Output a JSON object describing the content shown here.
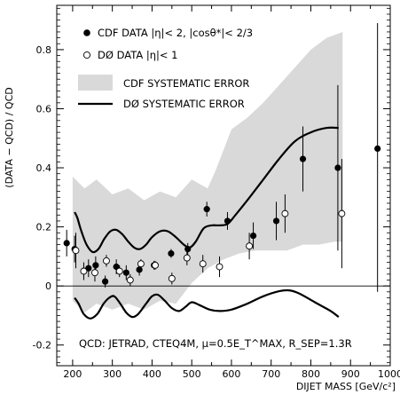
{
  "chart_data": {
    "type": "scatter",
    "xlabel": "DIJET MASS [GeV/c²]",
    "ylabel": "(DATA − QCD) / QCD",
    "xlim": [
      160,
      1000
    ],
    "ylim": [
      -0.27,
      0.95
    ],
    "x_ticks": [
      200,
      300,
      400,
      500,
      600,
      700,
      800,
      900,
      1000
    ],
    "y_ticks": [
      -0.2,
      0,
      0.2,
      0.4,
      0.6,
      0.8
    ],
    "y_tick_labels": [
      "-0.2",
      "0",
      "0.2",
      "0.4",
      "0.6",
      "0.8"
    ],
    "annotation": "QCD: JETRAD, CTEQ4M, μ=0.5E_T^MAX, R_SEP=1.3R",
    "legend": {
      "cdf_data": "CDF DATA |η|< 2, |cosθ*|< 2/3",
      "d0_data": "DØ DATA |η|< 1",
      "cdf_syst": "CDF SYSTEMATIC ERROR",
      "d0_syst": "DØ SYSTEMATIC ERROR"
    },
    "series": [
      {
        "name": "CDF DATA |η|< 2, |cosθ*|< 2/3",
        "marker": "filled-circle",
        "points": [
          {
            "x": 185,
            "y": 0.145,
            "lo": 0.1,
            "hi": 0.19
          },
          {
            "x": 205,
            "y": 0.125,
            "lo": 0.08,
            "hi": 0.17
          },
          {
            "x": 240,
            "y": 0.06,
            "lo": 0.03,
            "hi": 0.09
          },
          {
            "x": 258,
            "y": 0.07,
            "lo": 0.04,
            "hi": 0.1
          },
          {
            "x": 282,
            "y": 0.015,
            "lo": -0.005,
            "hi": 0.035
          },
          {
            "x": 310,
            "y": 0.065,
            "lo": 0.04,
            "hi": 0.09
          },
          {
            "x": 335,
            "y": 0.045,
            "lo": 0.02,
            "hi": 0.07
          },
          {
            "x": 368,
            "y": 0.055,
            "lo": 0.035,
            "hi": 0.075
          },
          {
            "x": 405,
            "y": 0.07,
            "lo": 0.055,
            "hi": 0.085
          },
          {
            "x": 448,
            "y": 0.11,
            "lo": 0.095,
            "hi": 0.125
          },
          {
            "x": 490,
            "y": 0.125,
            "lo": 0.105,
            "hi": 0.145
          },
          {
            "x": 538,
            "y": 0.26,
            "lo": 0.235,
            "hi": 0.285
          },
          {
            "x": 590,
            "y": 0.22,
            "lo": 0.19,
            "hi": 0.25
          },
          {
            "x": 655,
            "y": 0.17,
            "lo": 0.125,
            "hi": 0.215
          },
          {
            "x": 713,
            "y": 0.22,
            "lo": 0.155,
            "hi": 0.285
          },
          {
            "x": 780,
            "y": 0.43,
            "lo": 0.32,
            "hi": 0.54
          },
          {
            "x": 868,
            "y": 0.4,
            "lo": 0.12,
            "hi": 0.68
          },
          {
            "x": 968,
            "y": 0.465,
            "lo": -0.02,
            "hi": 0.89
          }
        ]
      },
      {
        "name": "DØ DATA |η|< 1",
        "marker": "open-circle",
        "points": [
          {
            "x": 208,
            "y": 0.12,
            "lo": 0.06,
            "hi": 0.18
          },
          {
            "x": 228,
            "y": 0.05,
            "lo": 0.02,
            "hi": 0.08
          },
          {
            "x": 256,
            "y": 0.045,
            "lo": 0.015,
            "hi": 0.075
          },
          {
            "x": 285,
            "y": 0.085,
            "lo": 0.065,
            "hi": 0.105
          },
          {
            "x": 318,
            "y": 0.05,
            "lo": 0.03,
            "hi": 0.07
          },
          {
            "x": 345,
            "y": 0.02,
            "lo": 0.0,
            "hi": 0.04
          },
          {
            "x": 372,
            "y": 0.075,
            "lo": 0.06,
            "hi": 0.09
          },
          {
            "x": 408,
            "y": 0.07,
            "lo": 0.055,
            "hi": 0.085
          },
          {
            "x": 450,
            "y": 0.025,
            "lo": 0.005,
            "hi": 0.045
          },
          {
            "x": 488,
            "y": 0.095,
            "lo": 0.07,
            "hi": 0.12
          },
          {
            "x": 528,
            "y": 0.075,
            "lo": 0.045,
            "hi": 0.105
          },
          {
            "x": 570,
            "y": 0.065,
            "lo": 0.03,
            "hi": 0.1
          },
          {
            "x": 645,
            "y": 0.135,
            "lo": 0.09,
            "hi": 0.18
          },
          {
            "x": 735,
            "y": 0.245,
            "lo": 0.18,
            "hi": 0.31
          },
          {
            "x": 878,
            "y": 0.245,
            "lo": 0.06,
            "hi": 0.43
          }
        ]
      }
    ],
    "cdf_systematic_band": {
      "upper": [
        [
          200,
          0.37
        ],
        [
          230,
          0.33
        ],
        [
          260,
          0.36
        ],
        [
          300,
          0.31
        ],
        [
          340,
          0.33
        ],
        [
          380,
          0.29
        ],
        [
          420,
          0.32
        ],
        [
          460,
          0.3
        ],
        [
          500,
          0.36
        ],
        [
          540,
          0.33
        ],
        [
          560,
          0.39
        ],
        [
          600,
          0.53
        ],
        [
          640,
          0.57
        ],
        [
          680,
          0.62
        ],
        [
          720,
          0.68
        ],
        [
          760,
          0.74
        ],
        [
          800,
          0.8
        ],
        [
          840,
          0.84
        ],
        [
          880,
          0.86
        ]
      ],
      "lower": [
        [
          200,
          -0.05
        ],
        [
          230,
          -0.09
        ],
        [
          260,
          -0.06
        ],
        [
          300,
          -0.08
        ],
        [
          340,
          -0.06
        ],
        [
          380,
          -0.08
        ],
        [
          420,
          -0.05
        ],
        [
          460,
          -0.06
        ],
        [
          500,
          0.01
        ],
        [
          540,
          0.06
        ],
        [
          580,
          0.09
        ],
        [
          620,
          0.11
        ],
        [
          660,
          0.12
        ],
        [
          700,
          0.12
        ],
        [
          740,
          0.12
        ],
        [
          780,
          0.14
        ],
        [
          820,
          0.14
        ],
        [
          860,
          0.15
        ],
        [
          880,
          0.15
        ]
      ]
    },
    "d0_systematic_upper": [
      [
        205,
        0.25
      ],
      [
        212,
        0.23
      ],
      [
        222,
        0.185
      ],
      [
        235,
        0.14
      ],
      [
        250,
        0.115
      ],
      [
        265,
        0.125
      ],
      [
        280,
        0.16
      ],
      [
        295,
        0.185
      ],
      [
        310,
        0.19
      ],
      [
        325,
        0.175
      ],
      [
        340,
        0.15
      ],
      [
        355,
        0.13
      ],
      [
        370,
        0.125
      ],
      [
        385,
        0.14
      ],
      [
        400,
        0.165
      ],
      [
        420,
        0.185
      ],
      [
        440,
        0.185
      ],
      [
        460,
        0.165
      ],
      [
        480,
        0.14
      ],
      [
        495,
        0.13
      ],
      [
        510,
        0.15
      ],
      [
        530,
        0.195
      ],
      [
        550,
        0.205
      ],
      [
        570,
        0.205
      ],
      [
        590,
        0.21
      ],
      [
        610,
        0.24
      ],
      [
        640,
        0.29
      ],
      [
        680,
        0.36
      ],
      [
        720,
        0.43
      ],
      [
        760,
        0.49
      ],
      [
        800,
        0.52
      ],
      [
        840,
        0.535
      ],
      [
        870,
        0.535
      ]
    ],
    "d0_systematic_lower": [
      [
        205,
        -0.04
      ],
      [
        215,
        -0.06
      ],
      [
        228,
        -0.095
      ],
      [
        245,
        -0.11
      ],
      [
        262,
        -0.095
      ],
      [
        278,
        -0.06
      ],
      [
        292,
        -0.04
      ],
      [
        305,
        -0.035
      ],
      [
        320,
        -0.06
      ],
      [
        335,
        -0.09
      ],
      [
        350,
        -0.105
      ],
      [
        365,
        -0.095
      ],
      [
        385,
        -0.06
      ],
      [
        400,
        -0.035
      ],
      [
        415,
        -0.03
      ],
      [
        432,
        -0.05
      ],
      [
        450,
        -0.075
      ],
      [
        468,
        -0.085
      ],
      [
        485,
        -0.07
      ],
      [
        500,
        -0.055
      ],
      [
        520,
        -0.065
      ],
      [
        545,
        -0.08
      ],
      [
        570,
        -0.085
      ],
      [
        600,
        -0.08
      ],
      [
        640,
        -0.06
      ],
      [
        680,
        -0.035
      ],
      [
        720,
        -0.018
      ],
      [
        745,
        -0.015
      ],
      [
        770,
        -0.025
      ],
      [
        810,
        -0.055
      ],
      [
        850,
        -0.085
      ],
      [
        870,
        -0.105
      ]
    ]
  }
}
